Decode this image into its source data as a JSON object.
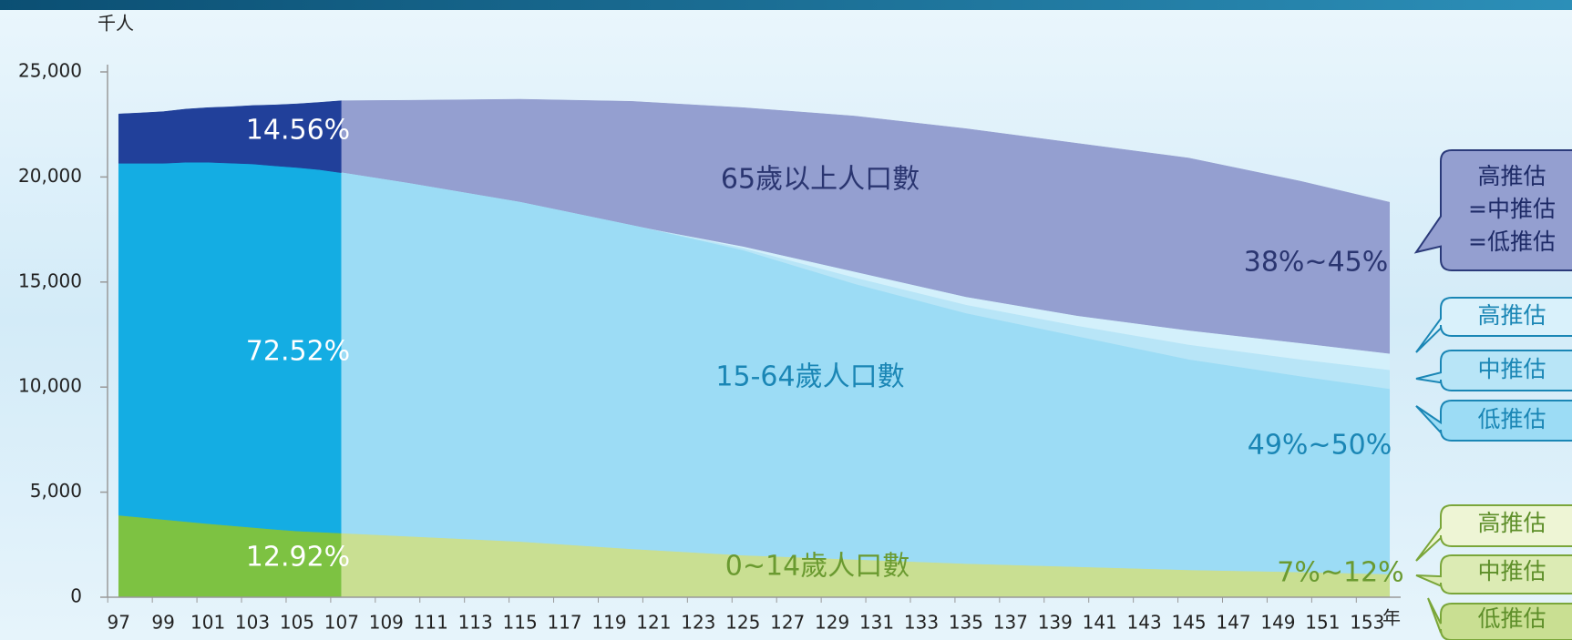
{
  "chart_data": {
    "type": "area",
    "y_unit": "千人",
    "x_unit": "年",
    "x": [
      97,
      98,
      99,
      100,
      101,
      102,
      103,
      104,
      105,
      106,
      107,
      110,
      115,
      120,
      125,
      130,
      135,
      140,
      145,
      150,
      154
    ],
    "xlim": [
      96.5,
      154.5
    ],
    "xticks": [
      97,
      99,
      101,
      103,
      105,
      107,
      109,
      111,
      113,
      115,
      117,
      119,
      121,
      123,
      125,
      127,
      129,
      131,
      133,
      135,
      137,
      139,
      141,
      143,
      145,
      147,
      149,
      151,
      153
    ],
    "ylim": [
      0,
      25000
    ],
    "yticks": [
      0,
      {
        "value": 5000,
        "label": "5,000"
      },
      {
        "value": 10000,
        "label": "10,000"
      },
      {
        "value": 15000,
        "label": "15,000"
      },
      {
        "value": 20000,
        "label": "20,000"
      },
      {
        "value": 25000,
        "label": "25,000"
      }
    ],
    "series": [
      {
        "color": "#7dc242",
        "values": [
          3900,
          3800,
          3700,
          3600,
          3500,
          3410,
          3320,
          3230,
          3150,
          3100,
          3050,
          null,
          null,
          null,
          null,
          null,
          null,
          null,
          null,
          null,
          null
        ]
      },
      {
        "color": "#14ade3",
        "values": [
          16750,
          16850,
          16950,
          17100,
          17200,
          17250,
          17300,
          17300,
          17300,
          17250,
          17150,
          null,
          null,
          null,
          null,
          null,
          null,
          null,
          null,
          null,
          null
        ]
      },
      {
        "color": "#21409a",
        "values": [
          2350,
          2400,
          2460,
          2530,
          2600,
          2680,
          2780,
          2900,
          3030,
          3200,
          3430,
          null,
          null,
          null,
          null,
          null,
          null,
          null,
          null,
          null,
          null
        ]
      },
      {
        "color": "#eef5d5",
        "values": [
          null,
          null,
          null,
          null,
          null,
          null,
          null,
          null,
          null,
          null,
          3050,
          3000,
          2950,
          2800,
          2650,
          2500,
          2400,
          2300,
          2200,
          2150,
          2150
        ]
      },
      {
        "color": "#dcebb4",
        "values": [
          null,
          null,
          null,
          null,
          null,
          null,
          null,
          null,
          null,
          null,
          3050,
          2950,
          2800,
          2550,
          2300,
          2150,
          2000,
          1850,
          1750,
          1650,
          1600
        ]
      },
      {
        "color": "#c9df92",
        "values": [
          null,
          null,
          null,
          null,
          null,
          null,
          null,
          null,
          null,
          null,
          3050,
          2900,
          2650,
          2300,
          2000,
          1800,
          1600,
          1450,
          1300,
          1200,
          1100
        ]
      },
      {
        "color": "#d3f0fb",
        "values": [
          null,
          null,
          null,
          null,
          null,
          null,
          null,
          null,
          null,
          null,
          17150,
          16700,
          15850,
          14900,
          14050,
          13000,
          11900,
          11100,
          10500,
          9950,
          9450
        ]
      },
      {
        "color": "#b8e5f7",
        "values": [
          null,
          null,
          null,
          null,
          null,
          null,
          null,
          null,
          null,
          null,
          17150,
          16750,
          16000,
          15150,
          14300,
          13050,
          11900,
          11050,
          10250,
          9650,
          9200
        ]
      },
      {
        "color": "#9cdcf5",
        "values": [
          null,
          null,
          null,
          null,
          null,
          null,
          null,
          null,
          null,
          null,
          17150,
          16800,
          16150,
          15400,
          14500,
          13100,
          11900,
          10950,
          10000,
          9300,
          8800
        ]
      },
      {
        "color": "#949fd0",
        "values": [
          null,
          null,
          null,
          null,
          null,
          null,
          null,
          null,
          null,
          null,
          3430,
          3950,
          4900,
          5900,
          6600,
          7400,
          8000,
          8200,
          8200,
          7700,
          7200
        ]
      }
    ],
    "annotations": [
      "14.56%",
      "72.52%",
      "12.92%",
      "65歲以上人口數",
      "15-64歲人口數",
      "0~14歲人口數",
      "38%~45%",
      "49%~50%",
      "7%~12%"
    ],
    "callouts": [
      [
        "高推估",
        "=中推估",
        "=低推估"
      ],
      [
        "高推估"
      ],
      [
        "中推估"
      ],
      [
        "低推估"
      ],
      [
        "高推估"
      ],
      [
        "中推估"
      ],
      [
        "低推估"
      ]
    ]
  }
}
